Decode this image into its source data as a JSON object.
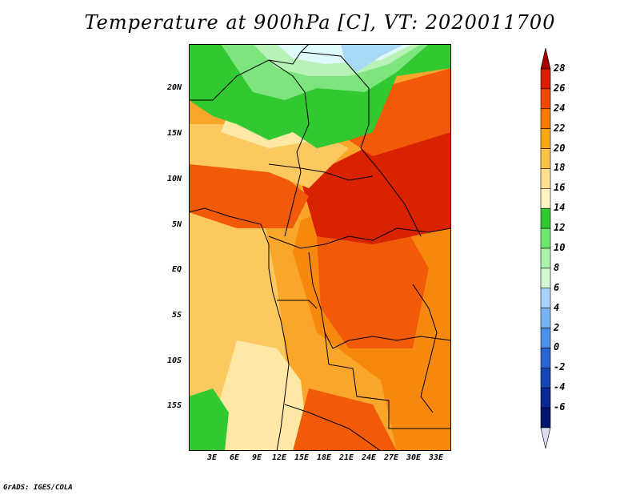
{
  "title": "Temperature at 900hPa [C], VT: 2020011700",
  "credit": "GrADS: IGES/COLA",
  "lat_labels": [
    "20N",
    "15N",
    "10N",
    "5N",
    "EQ",
    "5S",
    "10S",
    "15S"
  ],
  "lon_labels": [
    "3E",
    "6E",
    "9E",
    "12E",
    "15E",
    "18E",
    "21E",
    "24E",
    "27E",
    "30E",
    "33E"
  ],
  "colorbar": {
    "levels": [
      "28",
      "26",
      "24",
      "22",
      "20",
      "18",
      "16",
      "14",
      "12",
      "10",
      "8",
      "6",
      "4",
      "2",
      "0",
      "-2",
      "-4",
      "-6"
    ],
    "colors": [
      "#a50000",
      "#dc1e00",
      "#f04a00",
      "#f77b00",
      "#faa514",
      "#fcc34a",
      "#fde191",
      "#fff5c3",
      "#32c832",
      "#6ee66e",
      "#aaf5aa",
      "#d2fad2",
      "#aad2fa",
      "#78b4f5",
      "#4b91eb",
      "#2864d2",
      "#1446b4",
      "#0a2896",
      "#00146e",
      "#dcdcf5"
    ]
  },
  "map": {
    "field_colors": {
      "hot": "#d82200",
      "warm": "#f05a08",
      "orange": "#f7880e",
      "lightorange": "#f9a62a",
      "yellow": "#fcc860",
      "paleyellow": "#fde9a5",
      "green": "#32c832",
      "lightgreen": "#7ee57e",
      "palegreen": "#b8f2b8",
      "cyan": "#ddf9f9",
      "blue": "#a8d8f8"
    }
  }
}
